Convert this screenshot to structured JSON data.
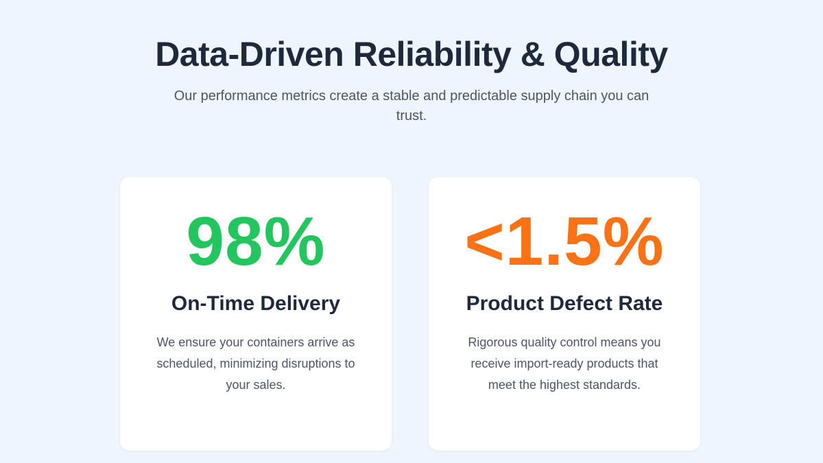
{
  "header": {
    "title": "Data-Driven Reliability & Quality",
    "subtitle": "Our performance metrics create a stable and predictable supply chain you can trust."
  },
  "cards": [
    {
      "value": "98%",
      "label": "On-Time Delivery",
      "description": "We ensure your containers arrive as scheduled, minimizing disruptions to your sales.",
      "accent_color": "#22c55e"
    },
    {
      "value": "<1.5%",
      "label": "Product Defect Rate",
      "description": "Rigorous quality control means you receive import-ready products that meet the highest standards.",
      "accent_color": "#f97316"
    }
  ]
}
